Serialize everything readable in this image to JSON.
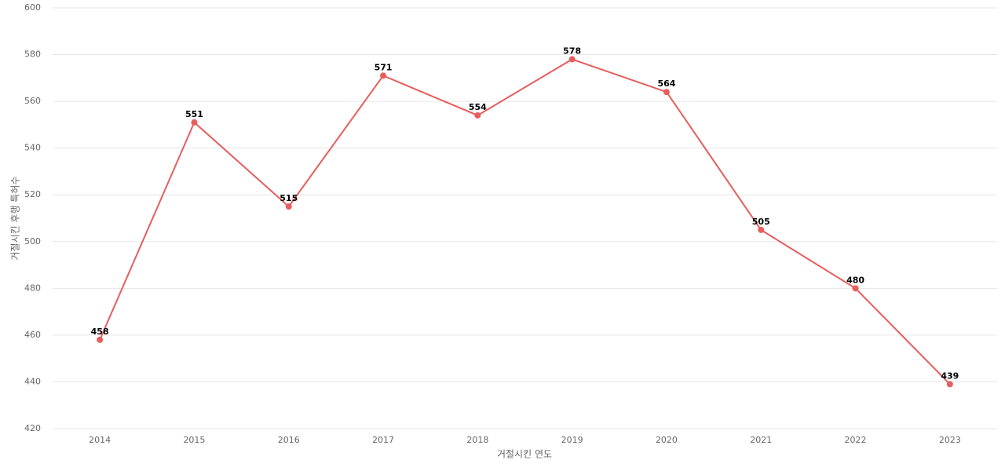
{
  "chart_data": {
    "type": "line",
    "x_label": "거절시킨 연도",
    "y_label": "거절시킨 후행 특허수",
    "categories": [
      "2014",
      "2015",
      "2016",
      "2017",
      "2018",
      "2019",
      "2020",
      "2021",
      "2022",
      "2023"
    ],
    "series": [
      {
        "color": "#e85d5d",
        "values": [
          458,
          551,
          515,
          571,
          554,
          578,
          564,
          505,
          480,
          439
        ]
      }
    ],
    "ylim": [
      420,
      600
    ],
    "yticks": [
      420,
      440,
      460,
      480,
      500,
      520,
      540,
      560,
      580,
      600
    ],
    "grid": true,
    "data_labels": true
  }
}
